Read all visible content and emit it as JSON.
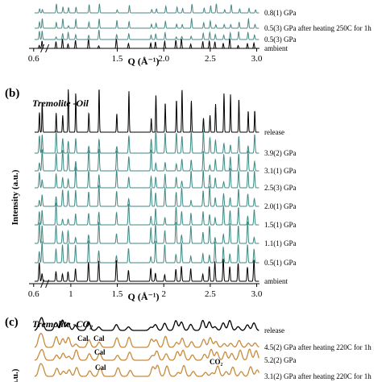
{
  "chart_data": [
    {
      "type": "line",
      "panel_label": "",
      "title": "",
      "xlabel": "Q (Å⁻¹)",
      "ylabel": "",
      "xlim": [
        0.55,
        3.03
      ],
      "x_ticks": [
        "0.6",
        "1.5",
        "2.0",
        "2.5",
        "3.0"
      ],
      "x_ticks_values": [
        0.6,
        1.5,
        2.0,
        2.5,
        3.0
      ],
      "axis_break_at": 0.72,
      "series": [
        {
          "name": "0.8(1) GPa",
          "color": "#4a8a84"
        },
        {
          "name": "0.5(3) GPa after heating 250C for 1h",
          "color": "#4a8a84"
        },
        {
          "name": "0.5(3) GPa",
          "color": "#4a8a84"
        },
        {
          "name": "ambient",
          "color": "#000000"
        }
      ],
      "peaks": [
        0.66,
        0.69,
        0.84,
        0.91,
        0.97,
        1.05,
        1.19,
        1.3,
        1.49,
        1.62,
        1.86,
        1.91,
        2.01,
        2.13,
        2.19,
        2.29,
        2.42,
        2.49,
        2.55,
        2.64,
        2.71,
        2.8,
        2.9,
        2.97
      ]
    },
    {
      "type": "line",
      "panel_label": "(b)",
      "title": "Tremolite -Oil",
      "xlabel": "Q (Å⁻¹)",
      "ylabel": "Intensity (a.u.)",
      "xlim": [
        0.55,
        3.03
      ],
      "x_ticks": [
        "0.6",
        "1",
        "1.5",
        "2",
        "2.5",
        "3.0"
      ],
      "x_ticks_values": [
        0.6,
        1.0,
        1.5,
        2.0,
        2.5,
        3.0
      ],
      "axis_break_at": 0.72,
      "series": [
        {
          "name": "release",
          "color": "#000000"
        },
        {
          "name": "3.9(2) GPa",
          "color": "#3e8a84"
        },
        {
          "name": "3.1(1) GPa",
          "color": "#3e8a84"
        },
        {
          "name": "2.5(3) GPa",
          "color": "#3e8a84"
        },
        {
          "name": "2.0(1) GPa",
          "color": "#3e8a84"
        },
        {
          "name": "1.5(1) GPa",
          "color": "#3e8a84"
        },
        {
          "name": "1.1(1) GPa",
          "color": "#3e8a84"
        },
        {
          "name": "0.5(1) GPa",
          "color": "#3e8a84"
        },
        {
          "name": "ambient",
          "color": "#000000"
        }
      ],
      "peaks": [
        0.66,
        0.69,
        0.84,
        0.91,
        0.97,
        1.05,
        1.19,
        1.3,
        1.49,
        1.62,
        1.86,
        1.91,
        2.01,
        2.13,
        2.19,
        2.29,
        2.42,
        2.49,
        2.55,
        2.64,
        2.71,
        2.8,
        2.9,
        2.97
      ],
      "annotations": []
    },
    {
      "type": "line",
      "panel_label": "(c)",
      "title": "Tremolite -CO₂",
      "xlabel": "",
      "ylabel": "a.u.)",
      "xlim": [
        0.55,
        3.03
      ],
      "series": [
        {
          "name": "release",
          "color": "#000000"
        },
        {
          "name": "4.5(2) GPa after heating 220C for 1h",
          "color": "#c98a3c"
        },
        {
          "name": "5.2(2) GPa",
          "color": "#c98a3c"
        },
        {
          "name": "3.1(2) GPa after heating 220C for 1h",
          "color": "#c98a3c"
        }
      ],
      "annotations": [
        "Cal",
        "Cal",
        "Cal",
        "Cal",
        "CO₂"
      ]
    }
  ]
}
